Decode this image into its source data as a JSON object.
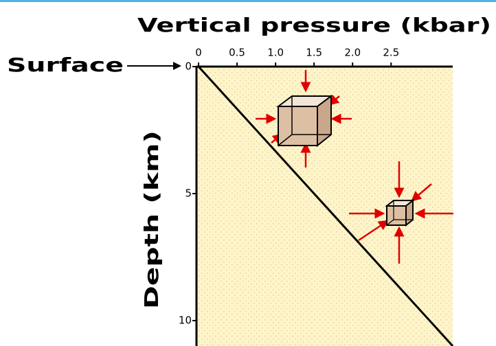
{
  "chart_data": {
    "type": "line",
    "x_label": "Vertical pressure (kbar)",
    "y_label": "Depth (km)",
    "annotation": "Surface",
    "x": [
      0,
      3.3
    ],
    "values": [
      0,
      11
    ],
    "color": "#000000",
    "xlim": [
      0,
      3.3
    ],
    "xticks": [
      0,
      0.5,
      {
        "value": 1,
        "label": "1.0"
      },
      1.5,
      {
        "value": 2,
        "label": "2.0"
      },
      2.5
    ],
    "ylim": [
      11,
      0
    ],
    "yticks": [
      0,
      5,
      10
    ],
    "background": "#fdf5c8"
  }
}
